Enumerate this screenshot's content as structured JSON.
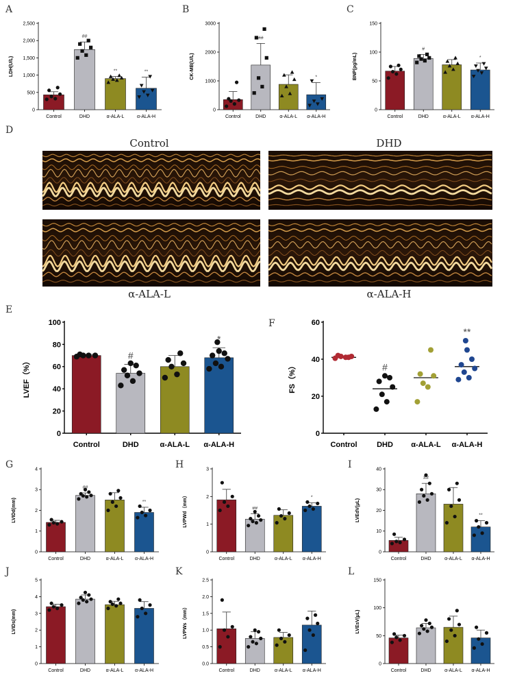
{
  "panels": {
    "A": "A",
    "B": "B",
    "C": "C",
    "D": "D",
    "E": "E",
    "F": "F",
    "G": "G",
    "H": "H",
    "I": "I",
    "J": "J",
    "K": "K",
    "L": "L"
  },
  "echo_labels": {
    "control": "Control",
    "dhd": "DHD",
    "ala_l": "α-ALA-L",
    "ala_h": "α-ALA-H"
  },
  "colors": {
    "control": "#8b1a25",
    "dhd": "#b8b8bf",
    "ala_l": "#8e8a22",
    "ala_h": "#1b5590",
    "fs_control": "#b02a33",
    "fs_ala_l": "#a2a035",
    "fs_ala_h": "#1f4690"
  },
  "chart_data": [
    {
      "id": "A",
      "type": "bar",
      "ylabel": "LDH(U/L)",
      "categories": [
        "Control",
        "DHD",
        "α-ALA-L",
        "α-ALA-H"
      ],
      "ylim": [
        0,
        2500
      ],
      "yticks": [
        0,
        500,
        1000,
        1500,
        2000,
        2500
      ],
      "ytick_labels": [
        "0",
        "500",
        "1,000",
        "1,500",
        "2,000",
        "2,500"
      ],
      "values": [
        430,
        1740,
        900,
        620
      ],
      "errors": [
        90,
        220,
        60,
        320
      ],
      "markers": [
        "circle",
        "square",
        "triangle",
        "triangle-down"
      ],
      "points": [
        [
          300,
          320,
          380,
          450,
          560,
          640
        ],
        [
          1500,
          1580,
          1700,
          1800,
          1900,
          2000
        ],
        [
          790,
          850,
          880,
          920,
          960,
          990
        ],
        [
          370,
          420,
          520,
          560,
          700,
          960
        ]
      ],
      "sig": [
        "",
        "##",
        "**",
        "**"
      ]
    },
    {
      "id": "B",
      "type": "bar",
      "ylabel": "CK-MB(U/L)",
      "categories": [
        "Control",
        "DHD",
        "α-ALA-L",
        "α-ALA-H"
      ],
      "ylim": [
        0,
        3000
      ],
      "yticks": [
        0,
        1000,
        2000,
        3000
      ],
      "ytick_labels": [
        "0",
        "1000",
        "2000",
        "3000"
      ],
      "values": [
        350,
        1550,
        880,
        520
      ],
      "errors": [
        280,
        750,
        330,
        420
      ],
      "markers": [
        "circle",
        "square",
        "triangle",
        "triangle-down"
      ],
      "points": [
        [
          120,
          200,
          300,
          330,
          380,
          950
        ],
        [
          580,
          800,
          1100,
          1800,
          2500,
          2800
        ],
        [
          480,
          560,
          800,
          1050,
          1200,
          1300
        ],
        [
          150,
          200,
          300,
          380,
          1000
        ]
      ],
      "sig": [
        "",
        "##",
        "",
        "*"
      ]
    },
    {
      "id": "C",
      "type": "bar",
      "ylabel": "BNP(pg/mL)",
      "categories": [
        "Control",
        "DHD",
        "α-ALA-L",
        "α-ALA-H"
      ],
      "ylim": [
        0,
        150
      ],
      "yticks": [
        0,
        50,
        100,
        150
      ],
      "ytick_labels": [
        "0",
        "50",
        "100",
        "150"
      ],
      "values": [
        67,
        89,
        78,
        69
      ],
      "errors": [
        8,
        7,
        9,
        12
      ],
      "markers": [
        "circle",
        "square",
        "triangle",
        "triangle-down"
      ],
      "points": [
        [
          55,
          62,
          66,
          70,
          75,
          77
        ],
        [
          82,
          85,
          88,
          90,
          93,
          96
        ],
        [
          65,
          70,
          76,
          80,
          84,
          90
        ],
        [
          58,
          64,
          68,
          72,
          76,
          80
        ]
      ],
      "sig": [
        "",
        "#",
        "",
        "*"
      ]
    },
    {
      "id": "E",
      "type": "bar",
      "ylabel": "LVEF（%）",
      "categories": [
        "Control",
        "DHD",
        "α-ALA-L",
        "α-ALA-H"
      ],
      "ylim": [
        0,
        100
      ],
      "yticks": [
        0,
        20,
        40,
        60,
        80,
        100
      ],
      "ytick_labels": [
        "0",
        "20",
        "40",
        "60",
        "80",
        "100"
      ],
      "values": [
        70,
        54,
        60,
        68
      ],
      "errors": [
        1,
        8,
        10,
        9
      ],
      "markers": [
        "circle",
        "circle",
        "circle",
        "circle"
      ],
      "points": [
        [
          69,
          70,
          70,
          70,
          71
        ],
        [
          43,
          47,
          52,
          54,
          57,
          61,
          63
        ],
        [
          50,
          53,
          60,
          63,
          66,
          72
        ],
        [
          58,
          60,
          63,
          67,
          70,
          72,
          74,
          82
        ]
      ],
      "sig": [
        "",
        "#",
        "",
        "*"
      ]
    },
    {
      "id": "F",
      "type": "scatter",
      "ylabel": "FS（%）",
      "categories": [
        "Control",
        "DHD",
        "α-ALA-L",
        "α-ALA-H"
      ],
      "ylim": [
        0,
        60
      ],
      "yticks": [
        0,
        20,
        40,
        60
      ],
      "ytick_labels": [
        "0",
        "20",
        "40",
        "60"
      ],
      "means": [
        41,
        24,
        30,
        36
      ],
      "points": [
        [
          40.5,
          41,
          41.5,
          41.5,
          42,
          41
        ],
        [
          13,
          17,
          21,
          25,
          28,
          30,
          31
        ],
        [
          17,
          25,
          27,
          31,
          32,
          45
        ],
        [
          29,
          30,
          33,
          35,
          37,
          40,
          45,
          50
        ]
      ],
      "sig": [
        "",
        "#",
        "",
        "**"
      ]
    },
    {
      "id": "G",
      "type": "bar",
      "ylabel": "LVIDd(mm)",
      "categories": [
        "Control",
        "DHD",
        "α-ALA-L",
        "α-ALA-H"
      ],
      "ylim": [
        0,
        4
      ],
      "yticks": [
        0,
        1,
        2,
        3,
        4
      ],
      "ytick_labels": [
        "0",
        "1",
        "2",
        "3",
        "4"
      ],
      "values": [
        1.42,
        2.72,
        2.5,
        1.9
      ],
      "errors": [
        0.1,
        0.12,
        0.35,
        0.25
      ],
      "markers": [
        "circle",
        "circle",
        "circle",
        "circle"
      ],
      "points": [
        [
          1.3,
          1.35,
          1.4,
          1.45,
          1.55
        ],
        [
          2.55,
          2.65,
          2.7,
          2.72,
          2.8,
          2.88,
          3.0
        ],
        [
          2.0,
          2.2,
          2.4,
          2.6,
          2.8,
          2.95
        ],
        [
          1.65,
          1.75,
          1.9,
          2.0,
          2.2
        ]
      ],
      "sig": [
        "",
        "##",
        "",
        "**"
      ]
    },
    {
      "id": "H",
      "type": "bar",
      "ylabel": "LVPWd（mm）",
      "categories": [
        "Control",
        "DHD",
        "α-ALA-L",
        "α-ALA-H"
      ],
      "ylim": [
        0,
        3
      ],
      "yticks": [
        0,
        1,
        2,
        3
      ],
      "ytick_labels": [
        "0",
        "1",
        "2",
        "3"
      ],
      "values": [
        1.88,
        1.18,
        1.32,
        1.65
      ],
      "errors": [
        0.38,
        0.2,
        0.2,
        0.12
      ],
      "markers": [
        "circle",
        "circle",
        "circle",
        "circle"
      ],
      "points": [
        [
          1.5,
          1.65,
          1.8,
          2.0,
          2.5
        ],
        [
          0.95,
          1.05,
          1.1,
          1.15,
          1.2,
          1.3,
          1.45
        ],
        [
          1.05,
          1.2,
          1.3,
          1.4,
          1.55
        ],
        [
          1.5,
          1.55,
          1.65,
          1.75,
          1.8
        ]
      ],
      "sig": [
        "",
        "##",
        "",
        "*"
      ]
    },
    {
      "id": "I",
      "type": "bar",
      "ylabel": "LVEdV(μL)",
      "categories": [
        "Control",
        "DHD",
        "α-ALA-L",
        "α-ALA-H"
      ],
      "ylim": [
        0,
        40
      ],
      "yticks": [
        0,
        10,
        20,
        30,
        40
      ],
      "ytick_labels": [
        "0",
        "10",
        "20",
        "30",
        "40"
      ],
      "values": [
        5.5,
        28,
        23,
        12
      ],
      "errors": [
        1.5,
        5,
        8,
        3
      ],
      "markers": [
        "circle",
        "circle",
        "circle",
        "circle"
      ],
      "points": [
        [
          4,
          4.5,
          5,
          6,
          8.5
        ],
        [
          24,
          25,
          27,
          28,
          30,
          33,
          37
        ],
        [
          14,
          17,
          22,
          25,
          30,
          33
        ],
        [
          8,
          9,
          12,
          14,
          15
        ]
      ],
      "sig": [
        "",
        "##",
        "",
        "**"
      ]
    },
    {
      "id": "J",
      "type": "bar",
      "ylabel": "LVIDs(mm)",
      "categories": [
        "Control",
        "DHD",
        "α-ALA-L",
        "α-ALA-H"
      ],
      "ylim": [
        0,
        5
      ],
      "yticks": [
        0,
        1,
        2,
        3,
        4,
        5
      ],
      "ytick_labels": [
        "0",
        "1",
        "2",
        "3",
        "4",
        "5"
      ],
      "values": [
        3.4,
        3.85,
        3.52,
        3.3
      ],
      "errors": [
        0.15,
        0.25,
        0.2,
        0.4
      ],
      "markers": [
        "circle",
        "circle",
        "circle",
        "circle"
      ],
      "points": [
        [
          3.2,
          3.3,
          3.4,
          3.5,
          3.6
        ],
        [
          3.6,
          3.7,
          3.8,
          3.85,
          3.95,
          4.1,
          4.25
        ],
        [
          3.3,
          3.45,
          3.55,
          3.6,
          3.7,
          3.85
        ],
        [
          2.8,
          3.0,
          3.3,
          3.5,
          3.8
        ]
      ],
      "sig": [
        "",
        "",
        "",
        ""
      ]
    },
    {
      "id": "K",
      "type": "bar",
      "ylabel": "LVPWs（mm）",
      "categories": [
        "Control",
        "DHD",
        "α-ALA-L",
        "α-ALA-H"
      ],
      "ylim": [
        0,
        2.5
      ],
      "yticks": [
        0,
        0.5,
        1.0,
        1.5,
        2.0,
        2.5
      ],
      "ytick_labels": [
        "0.0",
        "0.5",
        "1.0",
        "1.5",
        "2.0",
        "2.5"
      ],
      "values": [
        1.04,
        0.75,
        0.78,
        1.15
      ],
      "errors": [
        0.5,
        0.2,
        0.15,
        0.42
      ],
      "markers": [
        "circle",
        "circle",
        "circle",
        "circle"
      ],
      "points": [
        [
          0.5,
          0.8,
          1.0,
          1.1,
          1.9
        ],
        [
          0.5,
          0.6,
          0.65,
          0.75,
          0.8,
          0.95,
          1.0
        ],
        [
          0.55,
          0.65,
          0.75,
          0.85,
          1.0
        ],
        [
          0.4,
          0.85,
          1.0,
          1.2,
          1.35,
          1.45
        ]
      ],
      "sig": [
        "",
        "",
        "",
        ""
      ]
    },
    {
      "id": "L",
      "type": "bar",
      "ylabel": "LVEsV(μL)",
      "categories": [
        "Control",
        "DHD",
        "α-ALA-L",
        "α-ALA-H"
      ],
      "ylim": [
        0,
        150
      ],
      "yticks": [
        0,
        50,
        100,
        150
      ],
      "ytick_labels": [
        "0",
        "50",
        "100",
        "150"
      ],
      "values": [
        46,
        64,
        65,
        46
      ],
      "errors": [
        5,
        8,
        20,
        14
      ],
      "markers": [
        "circle",
        "circle",
        "circle",
        "circle"
      ],
      "points": [
        [
          38,
          42,
          47,
          50,
          53
        ],
        [
          54,
          58,
          62,
          65,
          68,
          72,
          78
        ],
        [
          40,
          50,
          60,
          70,
          80,
          95
        ],
        [
          28,
          35,
          44,
          55,
          65
        ]
      ],
      "sig": [
        "",
        "",
        "",
        ""
      ]
    }
  ]
}
